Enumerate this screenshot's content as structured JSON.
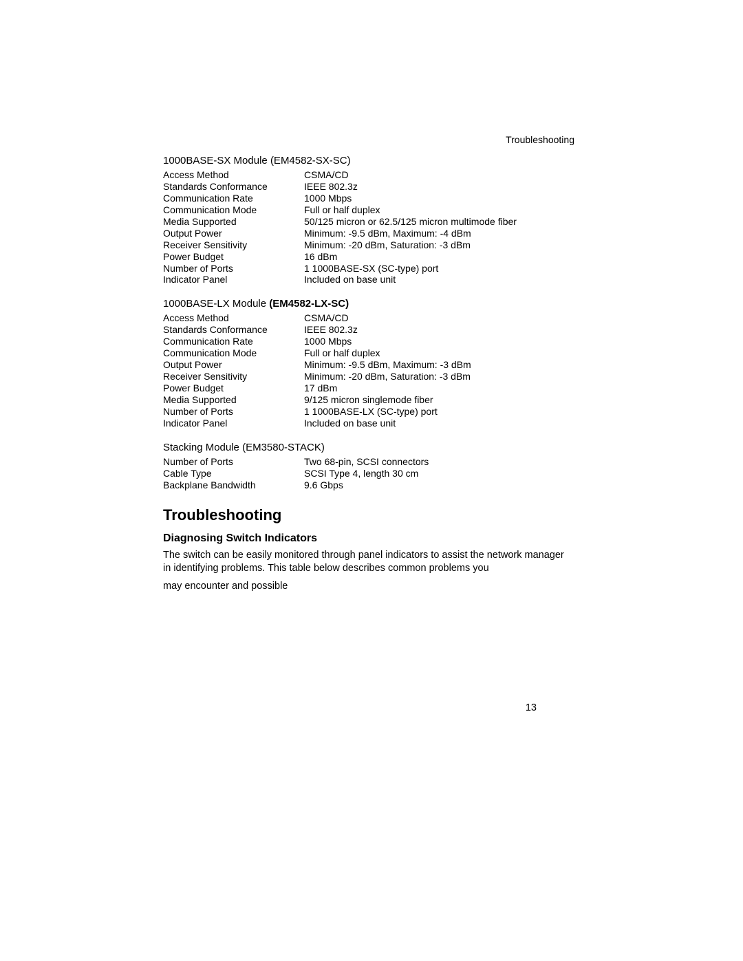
{
  "header_section": "Troubleshooting",
  "module_sx": {
    "title_a": "1000BASE-SX Module ",
    "title_b": "(EM4582-SX-SC)",
    "title_b_bold": false,
    "rows": [
      {
        "label": "Access Method",
        "value": "CSMA/CD"
      },
      {
        "label": "Standards Conformance",
        "value": "IEEE 802.3z"
      },
      {
        "label": "Communication Rate",
        "value": "1000 Mbps"
      },
      {
        "label": "Communication Mode",
        "value": "Full or half duplex"
      },
      {
        "label": "Media Supported",
        "value": "50/125 micron or 62.5/125 micron multimode fiber"
      },
      {
        "label": "Output Power",
        "value": "Minimum: -9.5 dBm, Maximum: -4 dBm"
      },
      {
        "label": "Receiver Sensitivity",
        "value": "Minimum: -20 dBm, Saturation: -3 dBm"
      },
      {
        "label": "Power Budget",
        "value": "16 dBm"
      },
      {
        "label": "Number of Ports",
        "value": "1 1000BASE-SX (SC-type) port"
      },
      {
        "label": "Indicator Panel",
        "value": "Included on base unit"
      }
    ]
  },
  "module_lx": {
    "title_a": "1000BASE-LX Module ",
    "title_b": "(EM4582-LX-SC)",
    "title_b_bold": true,
    "rows": [
      {
        "label": "Access Method",
        "value": "CSMA/CD"
      },
      {
        "label": "Standards Conformance",
        "value": "IEEE 802.3z"
      },
      {
        "label": "Communication Rate",
        "value": "1000 Mbps"
      },
      {
        "label": "Communication Mode",
        "value": "Full or half duplex"
      },
      {
        "label": "Output Power",
        "value": "Minimum: -9.5 dBm, Maximum: -3 dBm"
      },
      {
        "label": "Receiver Sensitivity",
        "value": "Minimum: -20 dBm, Saturation: -3 dBm"
      },
      {
        "label": "Power Budget",
        "value": "17 dBm"
      },
      {
        "label": "Media Supported",
        "value": "9/125 micron singlemode fiber"
      },
      {
        "label": "Number of Ports",
        "value": "1 1000BASE-LX (SC-type) port"
      },
      {
        "label": "Indicator Panel",
        "value": "Included on base unit"
      }
    ]
  },
  "module_stack": {
    "title_a": "Stacking Module ",
    "title_b": "(EM3580-STACK)",
    "rows": [
      {
        "label": "Number of Ports",
        "value": "Two 68-pin, SCSI connectors"
      },
      {
        "label": "Cable Type",
        "value": "SCSI Type 4, length 30 cm"
      },
      {
        "label": "Backplane Bandwidth",
        "value": "9.6 Gbps"
      }
    ]
  },
  "troubleshooting_heading": "Troubleshooting",
  "diag_heading": "Diagnosing Switch Indicators",
  "body_p1": "The switch can be easily monitored through panel indicators to assist the network manager in identifying problems. This table below describes common problems you",
  "body_p2": "may encounter and possible",
  "page_number": "13"
}
